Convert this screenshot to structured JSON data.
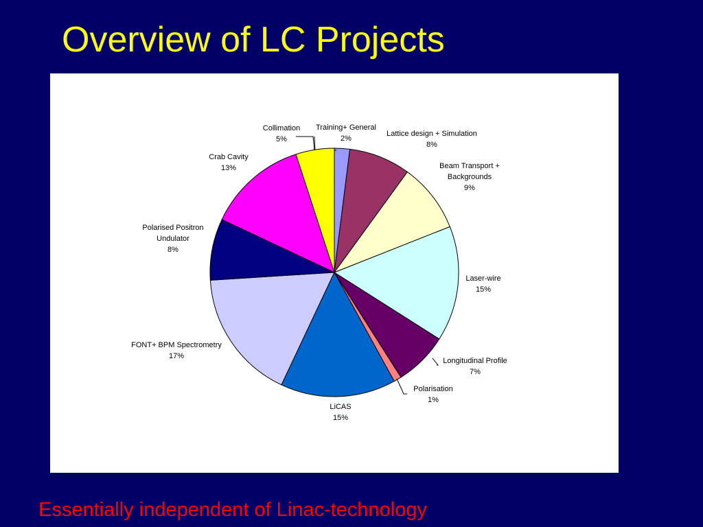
{
  "title": "Overview of LC Projects",
  "footer": "Essentially independent of Linac-technology",
  "chart_data": {
    "type": "pie",
    "categories": [
      "Training+ General",
      "Lattice design + Simulation",
      "Beam Transport + Backgrounds",
      "Laser-wire",
      "Longitudinal Profile",
      "Polarisation",
      "LiCAS",
      "FONT+ BPM Spectrometry",
      "Polarised Positron Undulator",
      "Crab Cavity",
      "Collimation"
    ],
    "values": [
      2,
      8,
      9,
      15,
      7,
      1,
      15,
      17,
      8,
      13,
      5
    ],
    "value_labels": [
      "2%",
      "8%",
      "9%",
      "15%",
      "7%",
      "1%",
      "15%",
      "17%",
      "8%",
      "13%",
      "5%"
    ],
    "colors": [
      "#9999ff",
      "#993366",
      "#ffffcc",
      "#ccffff",
      "#660066",
      "#ff8080",
      "#0066cc",
      "#ccccff",
      "#000080",
      "#ff00ff",
      "#ffff00"
    ]
  }
}
